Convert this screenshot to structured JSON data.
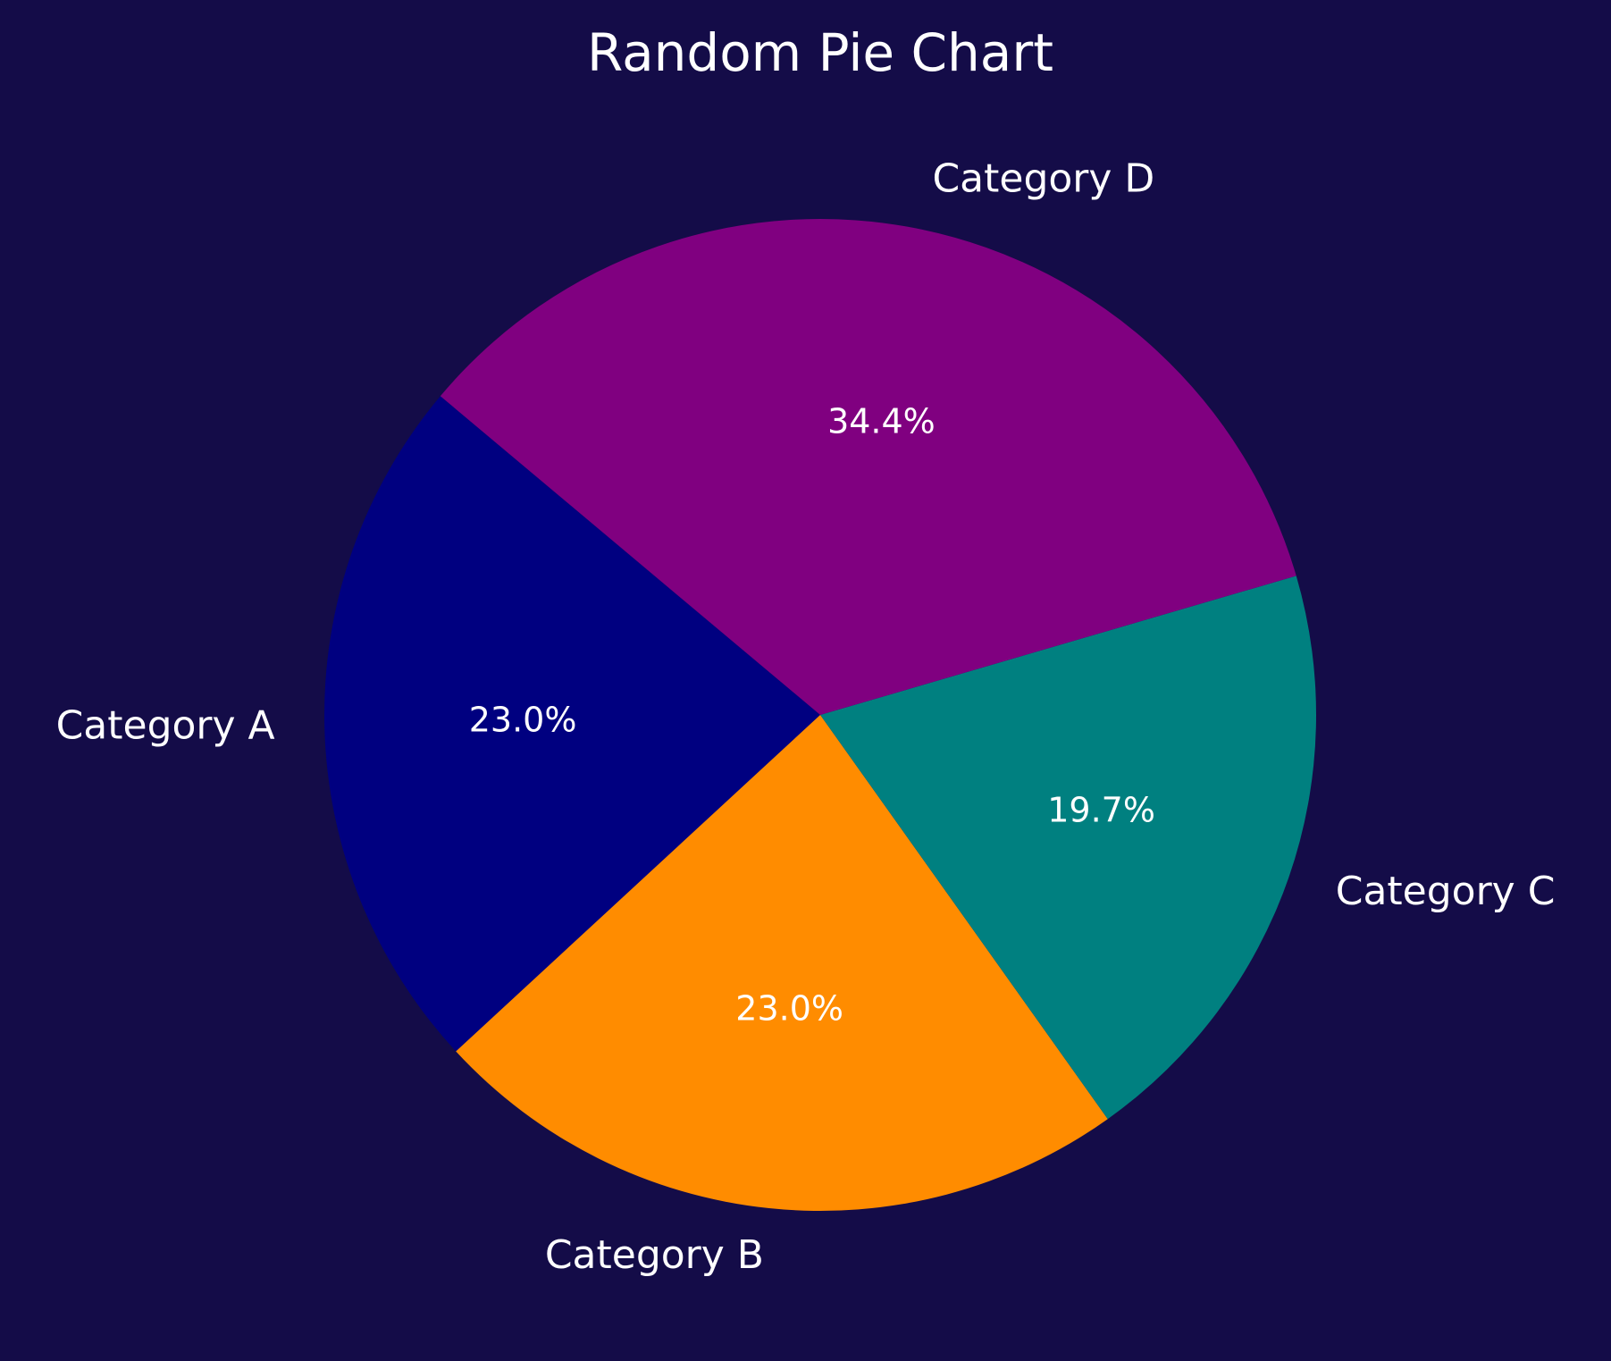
{
  "chart_data": {
    "type": "pie",
    "title": "Random Pie Chart",
    "categories": [
      "Category A",
      "Category B",
      "Category C",
      "Category D"
    ],
    "values": [
      23.0,
      23.0,
      19.7,
      34.4
    ],
    "percent_labels": [
      "23.0%",
      "23.0%",
      "19.7%",
      "34.4%"
    ],
    "colors": [
      "#000080",
      "#ff8c00",
      "#008080",
      "#800080"
    ],
    "start_angle_deg": 140,
    "direction": "counterclockwise",
    "background": "#140c48",
    "text_color": "#ffffff"
  }
}
